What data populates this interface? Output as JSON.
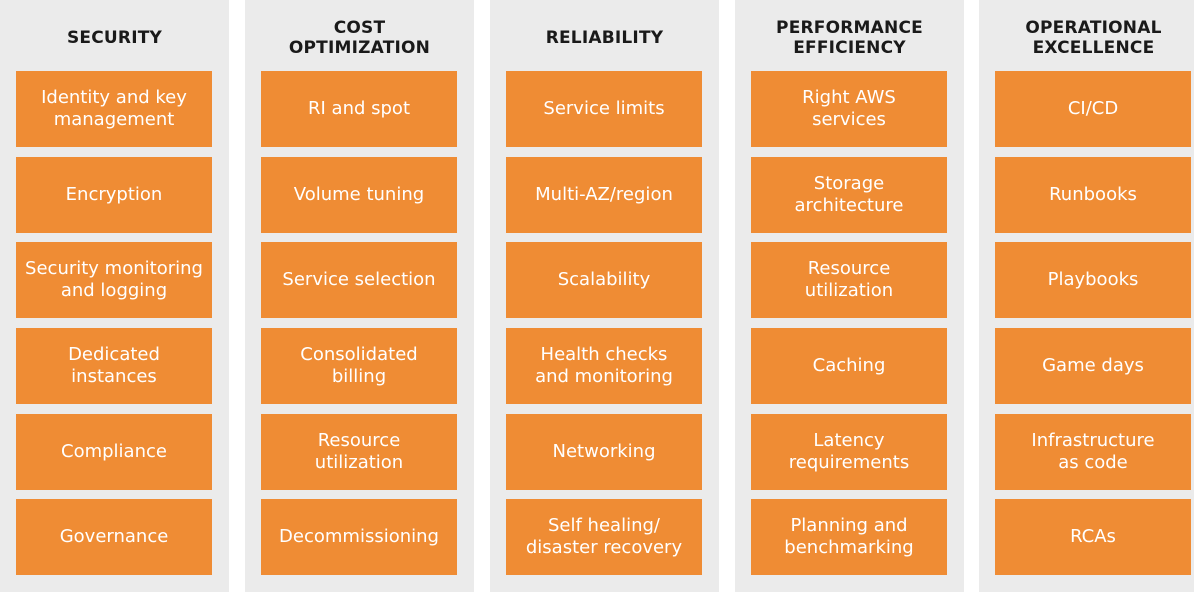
{
  "pillars": [
    {
      "title": "SECURITY",
      "items": [
        "Identity and key\nmanagement",
        "Encryption",
        "Security monitoring\nand logging",
        "Dedicated\ninstances",
        "Compliance",
        "Governance"
      ]
    },
    {
      "title": "COST\nOPTIMIZATION",
      "items": [
        "RI and spot",
        "Volume tuning",
        "Service selection",
        "Consolidated\nbilling",
        "Resource\nutilization",
        "Decommissioning"
      ]
    },
    {
      "title": "RELIABILITY",
      "items": [
        "Service limits",
        "Multi-AZ/region",
        "Scalability",
        "Health checks\nand monitoring",
        "Networking",
        "Self healing/\ndisaster recovery"
      ]
    },
    {
      "title": "PERFORMANCE\nEFFICIENCY",
      "items": [
        "Right AWS\nservices",
        "Storage\narchitecture",
        "Resource\nutilization",
        "Caching",
        "Latency\nrequirements",
        "Planning and\nbenchmarking"
      ]
    },
    {
      "title": "OPERATIONAL\nEXCELLENCE",
      "items": [
        "CI/CD",
        "Runbooks",
        "Playbooks",
        "Game days",
        "Infrastructure\nas code",
        "RCAs"
      ]
    }
  ],
  "colors": {
    "panel": "#ebebeb",
    "box": "#ef8c34",
    "box_text": "#ffffff",
    "title_text": "#1a1a1a"
  }
}
